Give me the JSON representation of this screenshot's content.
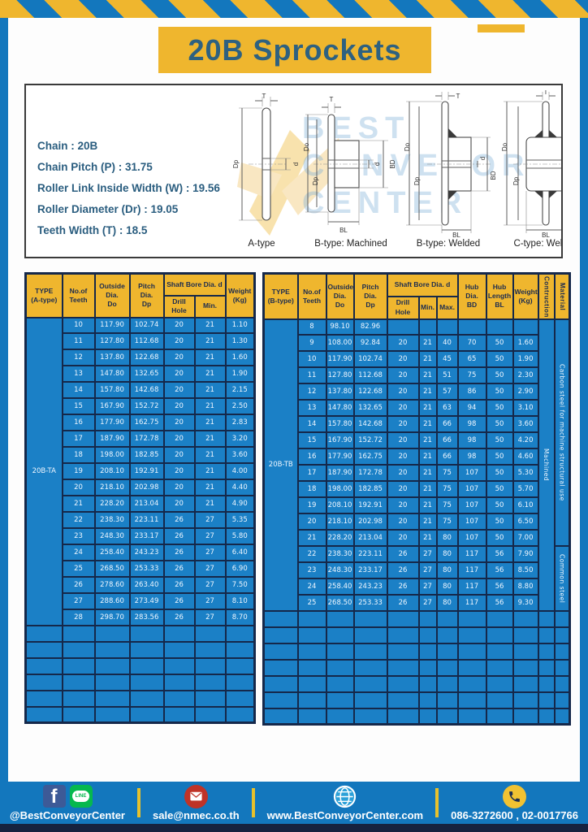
{
  "page": {
    "title": "20B Sprockets"
  },
  "specs": [
    "Chain : 20B",
    "Chain Pitch (P) : 31.75",
    "Roller Link Inside Width (W) : 19.56",
    "Roller Diameter (Dr) : 19.05",
    "Teeth Width (T) : 18.5"
  ],
  "watermark": {
    "text": "BEST\nCONVEYOR\nCENTER"
  },
  "diagrams": {
    "dims": {
      "t": "T",
      "do": "Do",
      "dp": "Dp",
      "d": "d",
      "bd": "BD",
      "bl": "BL"
    },
    "captions": [
      "A-type",
      "B-type: Machined",
      "B-type: Welded",
      "C-type: Welded"
    ]
  },
  "table_a": {
    "headers": {
      "type": "TYPE\n(A-type)",
      "teeth": "No.of\nTeeth",
      "outside": "Outside\nDia.\nDo",
      "pitch": "Pitch Dia.\nDp",
      "shaft_bore": "Shaft Bore Dia. d",
      "drill": "Drill Hole",
      "min": "Min.",
      "weight": "Weight\n(Kg)"
    },
    "type_label": "20B-TA",
    "rows": [
      [
        "10",
        "117.90",
        "102.74",
        "20",
        "21",
        "1.10"
      ],
      [
        "11",
        "127.80",
        "112.68",
        "20",
        "21",
        "1.30"
      ],
      [
        "12",
        "137.80",
        "122.68",
        "20",
        "21",
        "1.60"
      ],
      [
        "13",
        "147.80",
        "132.65",
        "20",
        "21",
        "1.90"
      ],
      [
        "14",
        "157.80",
        "142.68",
        "20",
        "21",
        "2.15"
      ],
      [
        "15",
        "167.90",
        "152.72",
        "20",
        "21",
        "2.50"
      ],
      [
        "16",
        "177.90",
        "162.75",
        "20",
        "21",
        "2.83"
      ],
      [
        "17",
        "187.90",
        "172.78",
        "20",
        "21",
        "3.20"
      ],
      [
        "18",
        "198.00",
        "182.85",
        "20",
        "21",
        "3.60"
      ],
      [
        "19",
        "208.10",
        "192.91",
        "20",
        "21",
        "4.00"
      ],
      [
        "20",
        "218.10",
        "202.98",
        "20",
        "21",
        "4.40"
      ],
      [
        "21",
        "228.20",
        "213.04",
        "20",
        "21",
        "4.90"
      ],
      [
        "22",
        "238.30",
        "223.11",
        "26",
        "27",
        "5.35"
      ],
      [
        "23",
        "248.30",
        "233.17",
        "26",
        "27",
        "5.80"
      ],
      [
        "24",
        "258.40",
        "243.23",
        "26",
        "27",
        "6.40"
      ],
      [
        "25",
        "268.50",
        "253.33",
        "26",
        "27",
        "6.90"
      ],
      [
        "26",
        "278.60",
        "263.40",
        "26",
        "27",
        "7.50"
      ],
      [
        "27",
        "288.60",
        "273.49",
        "26",
        "27",
        "8.10"
      ],
      [
        "28",
        "298.70",
        "283.56",
        "26",
        "27",
        "8.70"
      ]
    ],
    "empty_rows": 6
  },
  "table_b": {
    "headers": {
      "type": "TYPE\n(B-type)",
      "teeth": "No.of\nTeeth",
      "outside": "Outside\nDia.\nDo",
      "pitch": "Pitch Dia.\nDp",
      "shaft_bore": "Shaft Bore Dia. d",
      "drill": "Drill Hole",
      "min": "Min.",
      "max": "Max.",
      "hub_dia": "Hub Dia.\nBD",
      "hub_len": "Hub\nLength\nBL",
      "weight": "Weight\n(Kg)",
      "construction": "Contruction",
      "material": "Material"
    },
    "type_label": "20B-TB",
    "rows": [
      [
        "8",
        "98.10",
        "82.96",
        "",
        "",
        "",
        "",
        "",
        ""
      ],
      [
        "9",
        "108.00",
        "92.84",
        "20",
        "21",
        "40",
        "70",
        "50",
        "1.60"
      ],
      [
        "10",
        "117.90",
        "102.74",
        "20",
        "21",
        "45",
        "65",
        "50",
        "1.90"
      ],
      [
        "11",
        "127.80",
        "112.68",
        "20",
        "21",
        "51",
        "75",
        "50",
        "2.30"
      ],
      [
        "12",
        "137.80",
        "122.68",
        "20",
        "21",
        "57",
        "86",
        "50",
        "2.90"
      ],
      [
        "13",
        "147.80",
        "132.65",
        "20",
        "21",
        "63",
        "94",
        "50",
        "3.10"
      ],
      [
        "14",
        "157.80",
        "142.68",
        "20",
        "21",
        "66",
        "98",
        "50",
        "3.60"
      ],
      [
        "15",
        "167.90",
        "152.72",
        "20",
        "21",
        "66",
        "98",
        "50",
        "4.20"
      ],
      [
        "16",
        "177.90",
        "162.75",
        "20",
        "21",
        "66",
        "98",
        "50",
        "4.60"
      ],
      [
        "17",
        "187.90",
        "172.78",
        "20",
        "21",
        "75",
        "107",
        "50",
        "5.30"
      ],
      [
        "18",
        "198.00",
        "182.85",
        "20",
        "21",
        "75",
        "107",
        "50",
        "5.70"
      ],
      [
        "19",
        "208.10",
        "192.91",
        "20",
        "21",
        "75",
        "107",
        "50",
        "6.10"
      ],
      [
        "20",
        "218.10",
        "202.98",
        "20",
        "21",
        "75",
        "107",
        "50",
        "6.50"
      ],
      [
        "21",
        "228.20",
        "213.04",
        "20",
        "21",
        "80",
        "107",
        "50",
        "7.00"
      ],
      [
        "22",
        "238.30",
        "223.11",
        "26",
        "27",
        "80",
        "117",
        "56",
        "7.90"
      ],
      [
        "23",
        "248.30",
        "233.17",
        "26",
        "27",
        "80",
        "117",
        "56",
        "8.50"
      ],
      [
        "24",
        "258.40",
        "243.23",
        "26",
        "27",
        "80",
        "117",
        "56",
        "8.80"
      ],
      [
        "25",
        "268.50",
        "253.33",
        "26",
        "27",
        "80",
        "117",
        "56",
        "9.30"
      ]
    ],
    "construction_label": "Machined",
    "material_top": {
      "label": "Carbon steel for machine structural use",
      "row_span": 14
    },
    "material_bottom": {
      "label": "Common steel",
      "row_span": 4
    },
    "empty_rows": 7
  },
  "footer": {
    "fb_glyph": "f",
    "line_glyph": "LINE",
    "items": [
      {
        "text": "@BestConveyorCenter"
      },
      {
        "text": "sale@nmec.co.th"
      },
      {
        "text": "www.BestConveyorCenter.com"
      },
      {
        "text": "086-3272600 , 02-0017766"
      }
    ]
  },
  "colors": {
    "page_blue": "#1377bd",
    "table_blue": "#1b80c6",
    "header_yellow": "#efb62e",
    "border_navy": "#15284a",
    "title_text": "#2e6180"
  }
}
